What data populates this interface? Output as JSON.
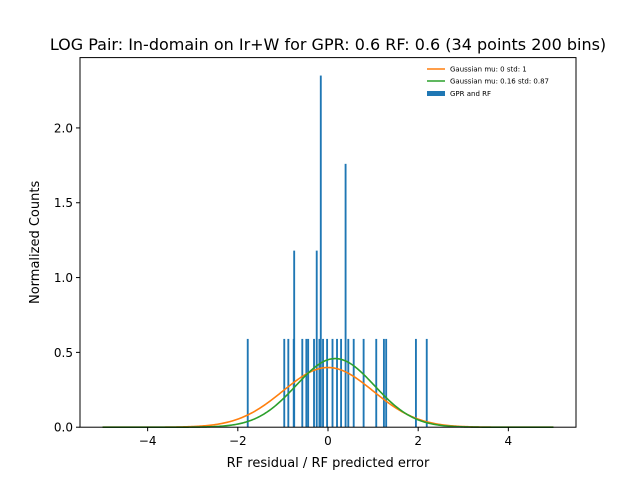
{
  "chart_data": {
    "type": "bar",
    "title": "LOG Pair: In-domain on Ir+W for GPR: 0.6 RF: 0.6 (34 points 200 bins)",
    "xlabel": "RF residual / RF predicted error",
    "ylabel": "Normalized Counts",
    "xlim": [
      -5.5,
      5.5
    ],
    "ylim": [
      0,
      2.47
    ],
    "xticks": [
      -4,
      -2,
      0,
      2,
      4
    ],
    "xtick_labels": [
      "−4",
      "−2",
      "0",
      "2",
      "4"
    ],
    "yticks": [
      0.0,
      0.5,
      1.0,
      1.5,
      2.0
    ],
    "ytick_labels": [
      "0.0",
      "0.5",
      "1.0",
      "1.5",
      "2.0"
    ],
    "grid": false,
    "legend_position": "top-right",
    "bar_width": 0.0415,
    "histogram": {
      "name": "GPR and RF",
      "color": "#1f77b4",
      "bars": [
        {
          "x": -1.78,
          "y": 0.59
        },
        {
          "x": -0.97,
          "y": 0.59
        },
        {
          "x": -0.88,
          "y": 0.59
        },
        {
          "x": -0.76,
          "y": 0.59
        },
        {
          "x": -0.75,
          "y": 1.18
        },
        {
          "x": -0.57,
          "y": 0.59
        },
        {
          "x": -0.48,
          "y": 0.59
        },
        {
          "x": -0.44,
          "y": 0.59
        },
        {
          "x": -0.31,
          "y": 0.59
        },
        {
          "x": -0.25,
          "y": 1.18
        },
        {
          "x": -0.19,
          "y": 0.59
        },
        {
          "x": -0.16,
          "y": 2.35
        },
        {
          "x": -0.11,
          "y": 0.59
        },
        {
          "x": -0.02,
          "y": 0.59
        },
        {
          "x": 0.1,
          "y": 0.59
        },
        {
          "x": 0.2,
          "y": 0.59
        },
        {
          "x": 0.29,
          "y": 0.59
        },
        {
          "x": 0.39,
          "y": 1.76
        },
        {
          "x": 0.45,
          "y": 0.59
        },
        {
          "x": 0.57,
          "y": 0.59
        },
        {
          "x": 0.79,
          "y": 0.59
        },
        {
          "x": 1.07,
          "y": 0.59
        },
        {
          "x": 1.24,
          "y": 0.59
        },
        {
          "x": 1.29,
          "y": 0.59
        },
        {
          "x": 1.95,
          "y": 0.59
        },
        {
          "x": 2.19,
          "y": 0.59
        }
      ]
    },
    "series": [
      {
        "name": "Gaussian mu: 0 std: 1",
        "color": "#ff7f0e",
        "mu": 0,
        "std": 1,
        "x_range": [
          -5,
          5
        ]
      },
      {
        "name": "Gaussian mu: 0.16 std: 0.87",
        "color": "#2ca02c",
        "mu": 0.16,
        "std": 0.87,
        "x_range": [
          -5,
          5
        ]
      }
    ]
  }
}
